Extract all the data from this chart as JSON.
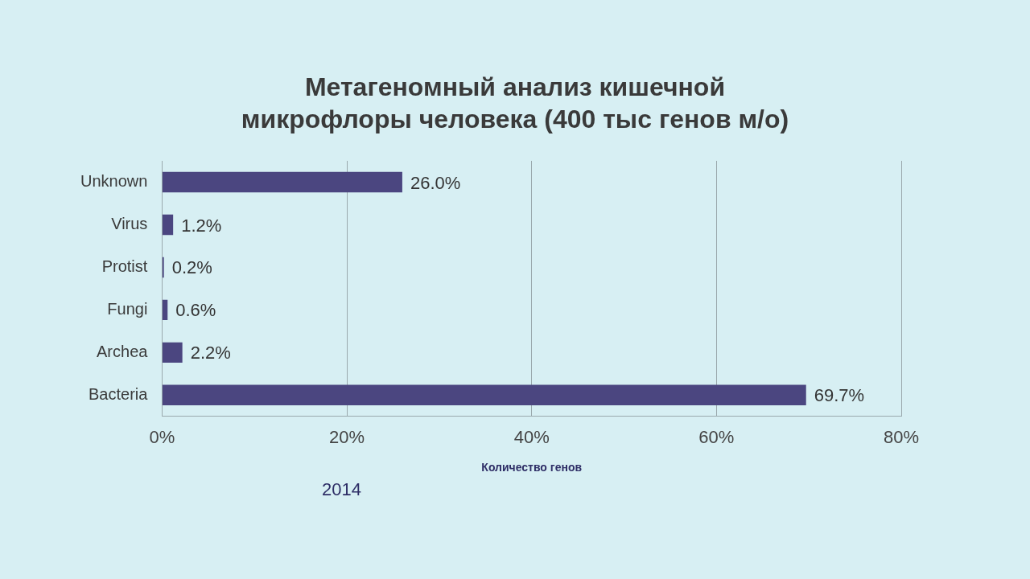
{
  "chart_data": {
    "type": "bar",
    "orientation": "horizontal",
    "title": "Метагеномный анализ кишечной микрофлоры человека (400 тыс генов м/о)",
    "xlabel": "Количество генов",
    "categories": [
      "Unknown",
      "Virus",
      "Protist",
      "Fungi",
      "Archea",
      "Bacteria"
    ],
    "values": [
      26.0,
      1.2,
      0.2,
      0.6,
      2.2,
      69.7
    ],
    "color": "#4b4680",
    "value_labels": [
      "26.0%",
      "1.2%",
      "0.2%",
      "0.6%",
      "2.2%",
      "69.7%"
    ],
    "xlim": [
      0,
      80
    ],
    "xticks": [
      {
        "value": 0,
        "label": "0%"
      },
      {
        "value": 20,
        "label": "20%"
      },
      {
        "value": 40,
        "label": "40%"
      },
      {
        "value": 60,
        "label": "60%"
      },
      {
        "value": 80,
        "label": "80%"
      }
    ],
    "grid": "x",
    "annotations": [
      "2014"
    ]
  }
}
